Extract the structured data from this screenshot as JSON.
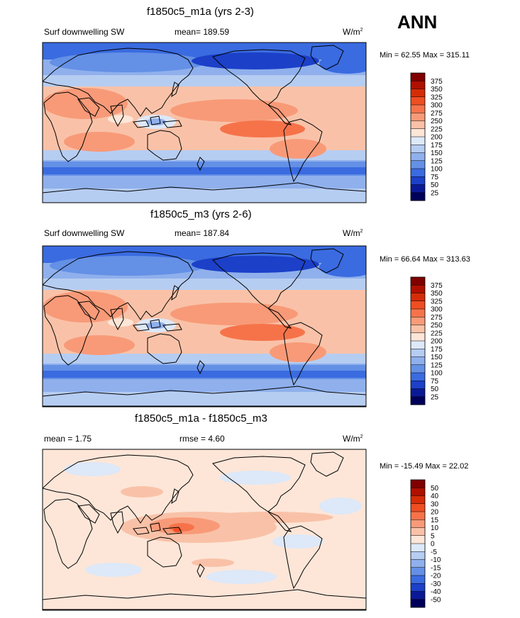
{
  "season": "ANN",
  "panels": [
    {
      "title": "f1850c5_m1a (yrs 2-3)",
      "left_label": "Surf downwelling SW",
      "center_label": "mean= 189.59",
      "units": "W/m",
      "units_exp": "2",
      "minmax": "Min =  62.55 Max = 315.11",
      "levels": [
        "375",
        "350",
        "325",
        "300",
        "275",
        "250",
        "225",
        "200",
        "175",
        "150",
        "125",
        "100",
        "75",
        "50",
        "25"
      ]
    },
    {
      "title": "f1850c5_m3 (yrs 2-6)",
      "left_label": "Surf downwelling SW",
      "center_label": "mean= 187.84",
      "units": "W/m",
      "units_exp": "2",
      "minmax": "Min =  66.64 Max = 313.63",
      "levels": [
        "375",
        "350",
        "325",
        "300",
        "275",
        "250",
        "225",
        "200",
        "175",
        "150",
        "125",
        "100",
        "75",
        "50",
        "25"
      ]
    },
    {
      "title": "f1850c5_m1a - f1850c5_m3",
      "left_label": "mean =   1.75",
      "center_label": "rmse =   4.60",
      "units": "W/m",
      "units_exp": "2",
      "minmax": "Min = -15.49 Max =  22.02",
      "levels": [
        "50",
        "40",
        "30",
        "20",
        "15",
        "10",
        "5",
        "0",
        "-5",
        "-10",
        "-15",
        "-20",
        "-30",
        "-40",
        "-50"
      ]
    }
  ],
  "colors": {
    "scale": [
      "#800000",
      "#b01000",
      "#d52d08",
      "#ee4e22",
      "#f6734a",
      "#f89a78",
      "#f9c2a8",
      "#fde6d8",
      "#dde8f8",
      "#b6cdf2",
      "#8fb0ec",
      "#6490e6",
      "#3a6be0",
      "#1c40c8",
      "#0a1a96",
      "#00005a"
    ],
    "diff_background": "#fde6d8"
  },
  "chart_data": [
    {
      "type": "heatmap",
      "title": "f1850c5_m1a (yrs 2-3)",
      "variable": "Surf downwelling SW",
      "units": "W/m2",
      "mean": 189.59,
      "min": 62.55,
      "max": 315.11,
      "contour_levels": [
        25,
        50,
        75,
        100,
        125,
        150,
        175,
        200,
        225,
        250,
        275,
        300,
        325,
        350,
        375
      ],
      "projection": "cylindrical equidistant, Pacific-centered",
      "zonal_profile": [
        {
          "lat": 80,
          "value": 105
        },
        {
          "lat": 60,
          "value": 120
        },
        {
          "lat": 45,
          "value": 160
        },
        {
          "lat": 30,
          "value": 230
        },
        {
          "lat": 15,
          "value": 250
        },
        {
          "lat": 0,
          "value": 215
        },
        {
          "lat": -15,
          "value": 250
        },
        {
          "lat": -30,
          "value": 220
        },
        {
          "lat": -45,
          "value": 150
        },
        {
          "lat": -60,
          "value": 95
        },
        {
          "lat": -80,
          "value": 160
        }
      ]
    },
    {
      "type": "heatmap",
      "title": "f1850c5_m3 (yrs 2-6)",
      "variable": "Surf downwelling SW",
      "units": "W/m2",
      "mean": 187.84,
      "min": 66.64,
      "max": 313.63,
      "contour_levels": [
        25,
        50,
        75,
        100,
        125,
        150,
        175,
        200,
        225,
        250,
        275,
        300,
        325,
        350,
        375
      ],
      "projection": "cylindrical equidistant, Pacific-centered",
      "zonal_profile": [
        {
          "lat": 80,
          "value": 100
        },
        {
          "lat": 60,
          "value": 118
        },
        {
          "lat": 45,
          "value": 160
        },
        {
          "lat": 30,
          "value": 228
        },
        {
          "lat": 15,
          "value": 248
        },
        {
          "lat": 0,
          "value": 212
        },
        {
          "lat": -15,
          "value": 248
        },
        {
          "lat": -30,
          "value": 218
        },
        {
          "lat": -45,
          "value": 148
        },
        {
          "lat": -60,
          "value": 92
        },
        {
          "lat": -80,
          "value": 158
        }
      ]
    },
    {
      "type": "heatmap",
      "title": "f1850c5_m1a - f1850c5_m3",
      "variable": "difference",
      "units": "W/m2",
      "mean": 1.75,
      "rmse": 4.6,
      "min": -15.49,
      "max": 22.02,
      "contour_levels": [
        -50,
        -40,
        -30,
        -20,
        -15,
        -10,
        -5,
        0,
        5,
        10,
        15,
        20,
        30,
        40,
        50
      ],
      "projection": "cylindrical equidistant, Pacific-centered"
    }
  ]
}
